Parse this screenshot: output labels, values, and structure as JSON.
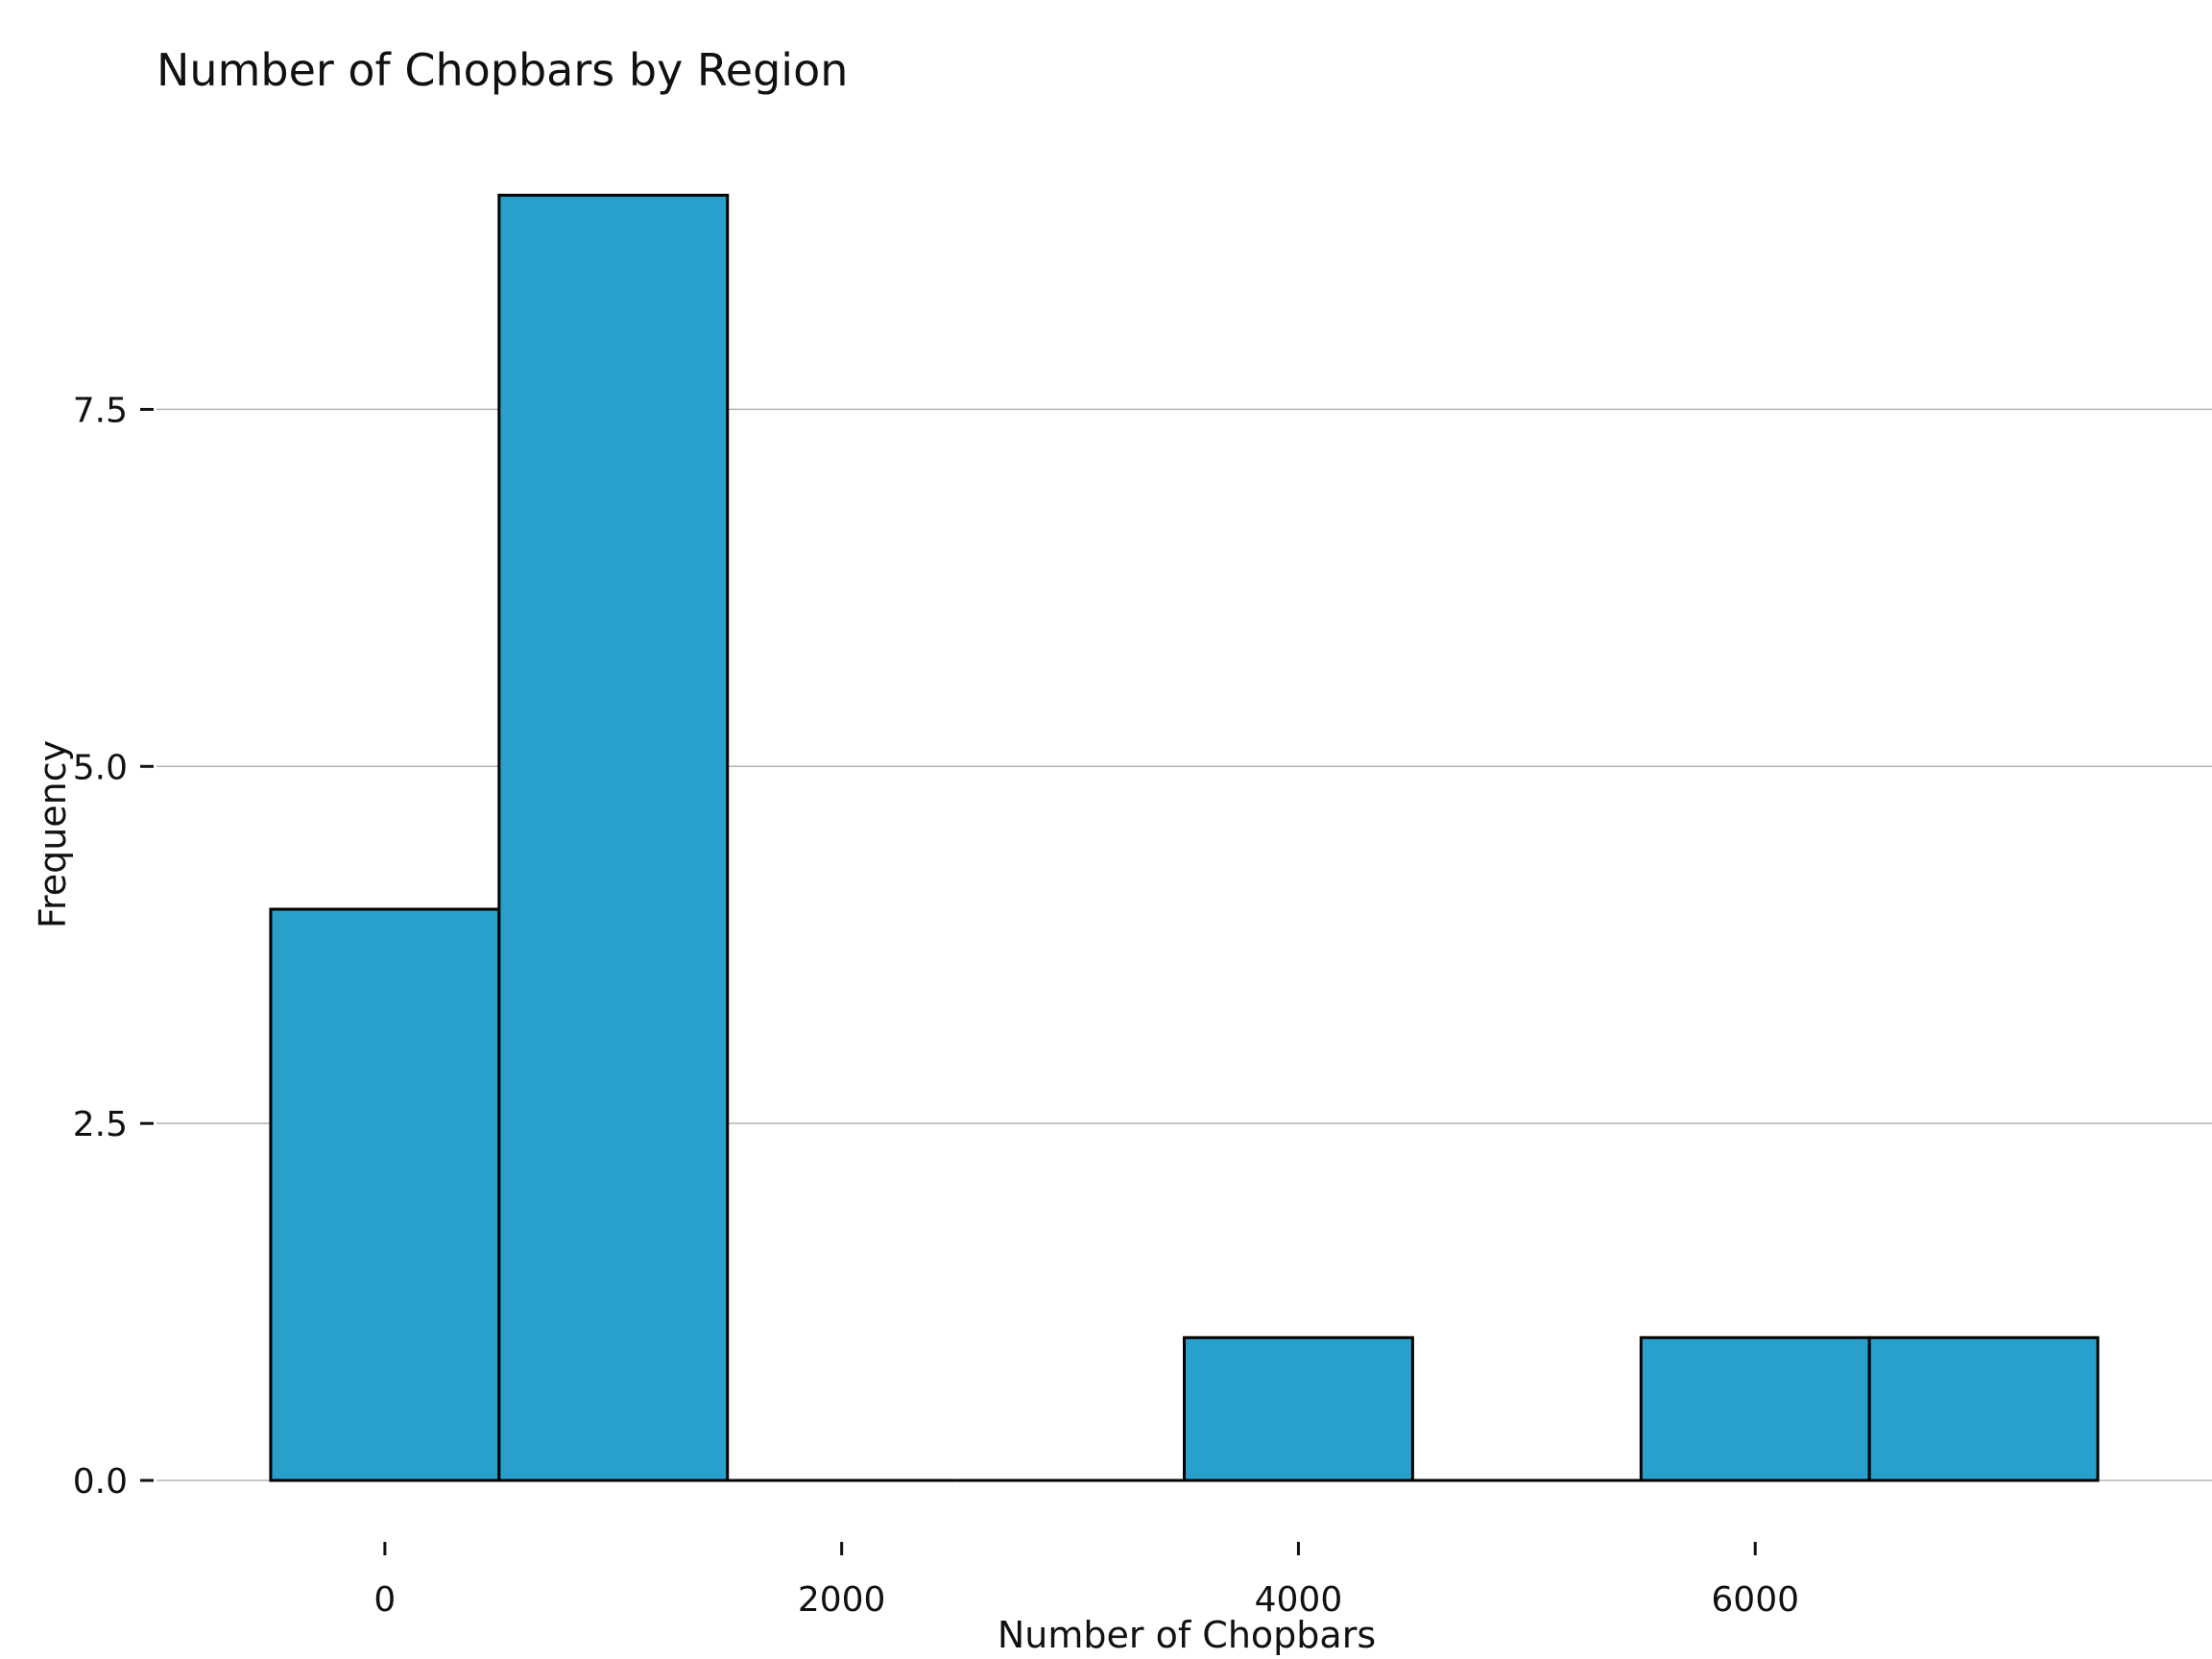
{
  "chart_data": {
    "type": "bar",
    "title": "Number of Chopbars by Region",
    "xlabel": "Number of Chopbars",
    "ylabel": "Frequency",
    "bins": [
      {
        "x_start": -500,
        "x_end": 500,
        "count": 4
      },
      {
        "x_start": 500,
        "x_end": 1500,
        "count": 9
      },
      {
        "x_start": 1500,
        "x_end": 2500,
        "count": 0
      },
      {
        "x_start": 2500,
        "x_end": 3500,
        "count": 0
      },
      {
        "x_start": 3500,
        "x_end": 4500,
        "count": 1
      },
      {
        "x_start": 4500,
        "x_end": 5500,
        "count": 0
      },
      {
        "x_start": 5500,
        "x_end": 6500,
        "count": 1
      },
      {
        "x_start": 6500,
        "x_end": 7500,
        "count": 1
      }
    ],
    "xticks": [
      0,
      2000,
      4000,
      6000
    ],
    "xtick_labels": [
      "0",
      "2000",
      "4000",
      "6000"
    ],
    "yticks": [
      0,
      2.5,
      5,
      7.5
    ],
    "ytick_labels": [
      "0.0",
      "2.5",
      "5.0",
      "7.5"
    ],
    "xlim": [
      -1000,
      8000
    ],
    "ylim": [
      0,
      9.15
    ],
    "grid": "horizontal",
    "legend": "none",
    "bar_color": "#29a0cc",
    "bar_edge_color": "#000000",
    "grid_color": "#b3b3b3"
  }
}
